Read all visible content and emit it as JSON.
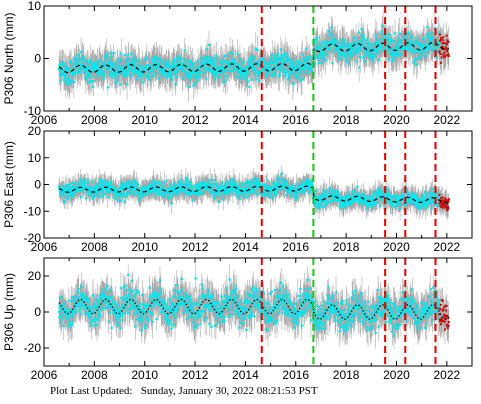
{
  "footer": {
    "label": "Plot Last Updated:",
    "date": "Sunday, January 30, 2022 08:21:53 PST"
  },
  "colors": {
    "errorbar": "#a9a9a9",
    "daily": "#00e5ee",
    "recent": "#cc0000",
    "model": "#000000",
    "event_red": "#dd0000",
    "event_green": "#22bb22"
  },
  "chart_data": [
    {
      "type": "scatter",
      "station": "P306",
      "ylabel": "P306 North (mm)",
      "xlim": [
        2006,
        2023
      ],
      "ylim": [
        -10,
        10
      ],
      "yticks": [
        -10,
        0,
        10
      ],
      "xticks": [
        "2006",
        "2008",
        "2010",
        "2012",
        "2014",
        "2016",
        "2018",
        "2020",
        "2022"
      ],
      "show_x_tick_labels": true,
      "data_start": 2006.6,
      "data_end": 2022.08,
      "model_trend": [
        [
          2006.6,
          -2.0
        ],
        [
          2016.7,
          -1.6
        ],
        [
          2016.7,
          2.0
        ],
        [
          2022.08,
          2.4
        ]
      ],
      "seasonal_amplitude": 0.7,
      "scatter_sd": 1.2,
      "error_bar_halfwidth": 2.6,
      "event_lines": [
        {
          "year": 2014.65,
          "color": "red"
        },
        {
          "year": 2016.7,
          "color": "green"
        },
        {
          "year": 2019.55,
          "color": "red"
        },
        {
          "year": 2020.35,
          "color": "red"
        },
        {
          "year": 2021.55,
          "color": "red"
        }
      ]
    },
    {
      "type": "scatter",
      "station": "P306",
      "ylabel": "P306 East (mm)",
      "xlim": [
        2006,
        2023
      ],
      "ylim": [
        -20,
        20
      ],
      "yticks": [
        -20,
        -10,
        0,
        10,
        20
      ],
      "xticks": [
        "2006",
        "2008",
        "2010",
        "2012",
        "2014",
        "2016",
        "2018",
        "2020",
        "2022"
      ],
      "show_x_tick_labels": true,
      "data_start": 2006.6,
      "data_end": 2022.08,
      "model_trend": [
        [
          2006.6,
          -2.0
        ],
        [
          2016.7,
          -1.5
        ],
        [
          2016.7,
          -5.0
        ],
        [
          2022.08,
          -6.0
        ]
      ],
      "seasonal_amplitude": 0.9,
      "scatter_sd": 1.4,
      "error_bar_halfwidth": 3.5,
      "event_lines": [
        {
          "year": 2014.65,
          "color": "red"
        },
        {
          "year": 2016.7,
          "color": "green"
        },
        {
          "year": 2019.55,
          "color": "red"
        },
        {
          "year": 2020.35,
          "color": "red"
        },
        {
          "year": 2021.55,
          "color": "red"
        }
      ]
    },
    {
      "type": "scatter",
      "station": "P306",
      "ylabel": "P306 Up (mm)",
      "xlim": [
        2006,
        2023
      ],
      "ylim": [
        -30,
        30
      ],
      "yticks": [
        -20,
        0,
        20
      ],
      "xticks": [
        "2006",
        "2008",
        "2010",
        "2012",
        "2014",
        "2016",
        "2018",
        "2020",
        "2022"
      ],
      "show_x_tick_labels": true,
      "data_start": 2006.6,
      "data_end": 2022.08,
      "model_trend": [
        [
          2006.6,
          3.0
        ],
        [
          2016.7,
          3.0
        ],
        [
          2016.7,
          0.0
        ],
        [
          2022.08,
          0.0
        ]
      ],
      "seasonal_amplitude": 4.0,
      "scatter_sd": 4.5,
      "error_bar_halfwidth": 8.0,
      "event_lines": [
        {
          "year": 2014.65,
          "color": "red"
        },
        {
          "year": 2016.7,
          "color": "green"
        },
        {
          "year": 2019.55,
          "color": "red"
        },
        {
          "year": 2020.35,
          "color": "red"
        },
        {
          "year": 2021.55,
          "color": "red"
        }
      ]
    }
  ]
}
